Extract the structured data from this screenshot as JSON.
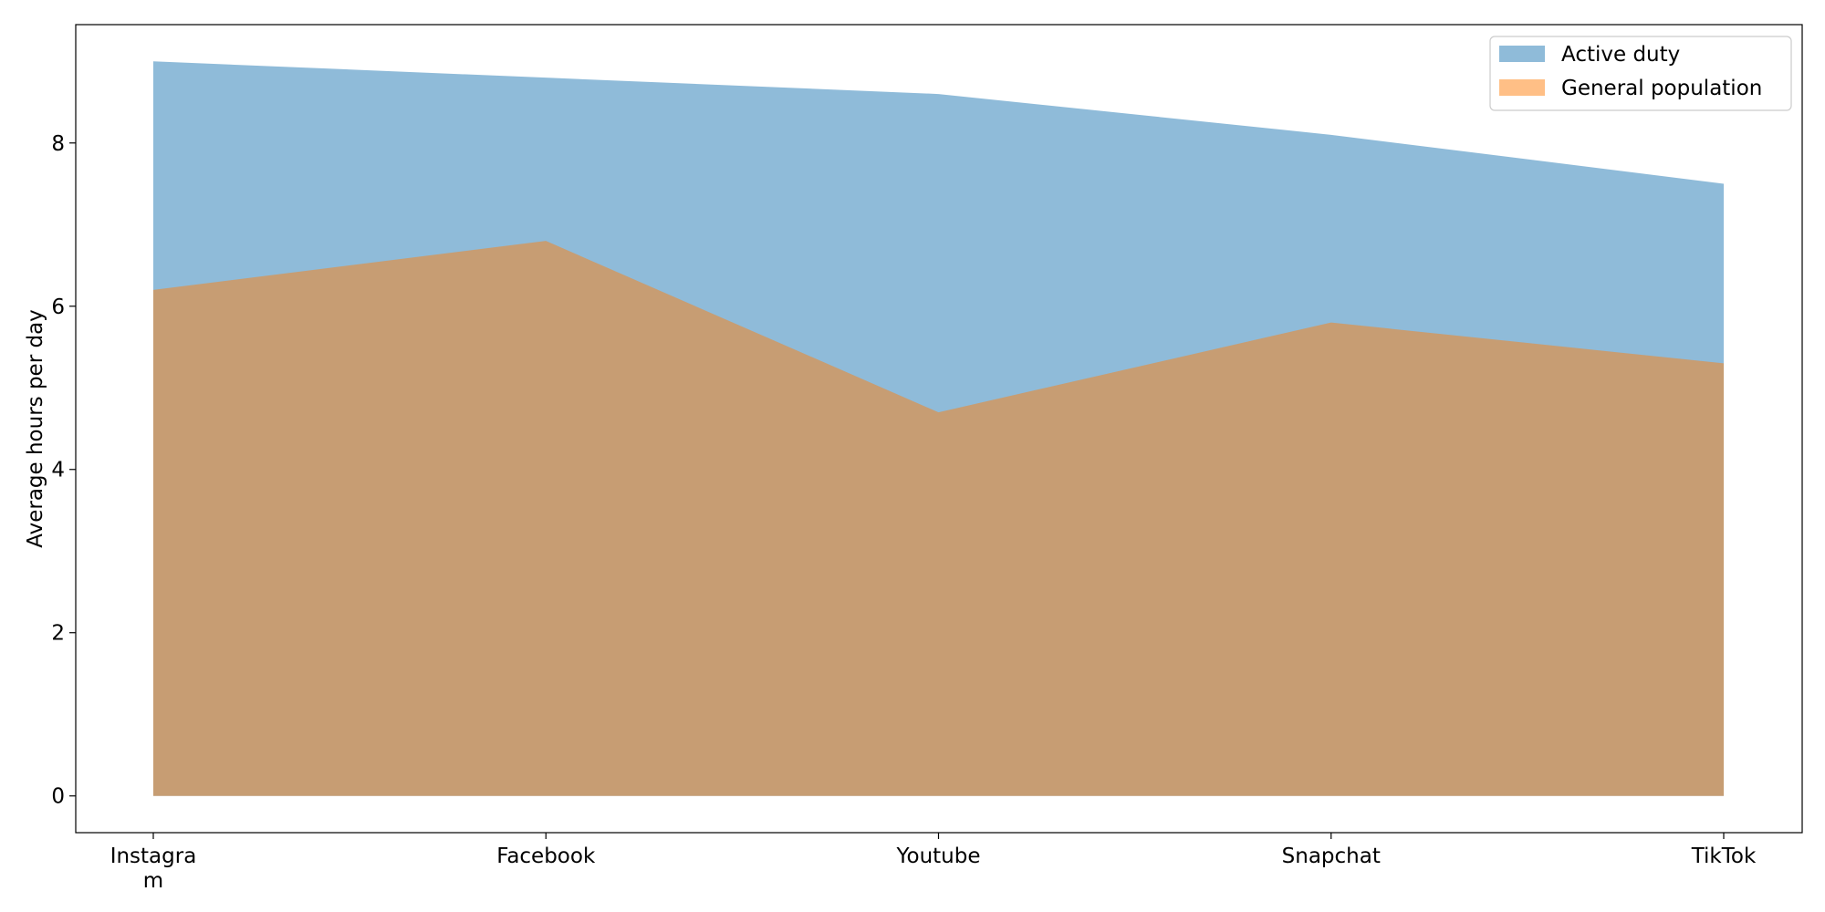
{
  "chart_data": {
    "type": "area",
    "categories": [
      "Instagram",
      "Facebook",
      "Youtube",
      "Snapchat",
      "TikTok"
    ],
    "category_tick_lines": [
      [
        "Instagra",
        "m"
      ],
      [
        "Facebook"
      ],
      [
        "Youtube"
      ],
      [
        "Snapchat"
      ],
      [
        "TikTok"
      ]
    ],
    "series": [
      {
        "name": "Active duty",
        "values": [
          9.0,
          8.8,
          8.6,
          8.1,
          7.5
        ],
        "color": "#1f77b4",
        "opacity": 0.5
      },
      {
        "name": "General population",
        "values": [
          6.2,
          6.8,
          4.7,
          5.8,
          5.3
        ],
        "color": "#ff7f0e",
        "opacity": 0.5
      }
    ],
    "title": "",
    "xlabel": "",
    "ylabel": "Average hours per day",
    "ylim": [
      -0.45,
      9.45
    ],
    "yticks": [
      0,
      2,
      4,
      6,
      8
    ],
    "grid": false,
    "legend_position": "top-right"
  }
}
